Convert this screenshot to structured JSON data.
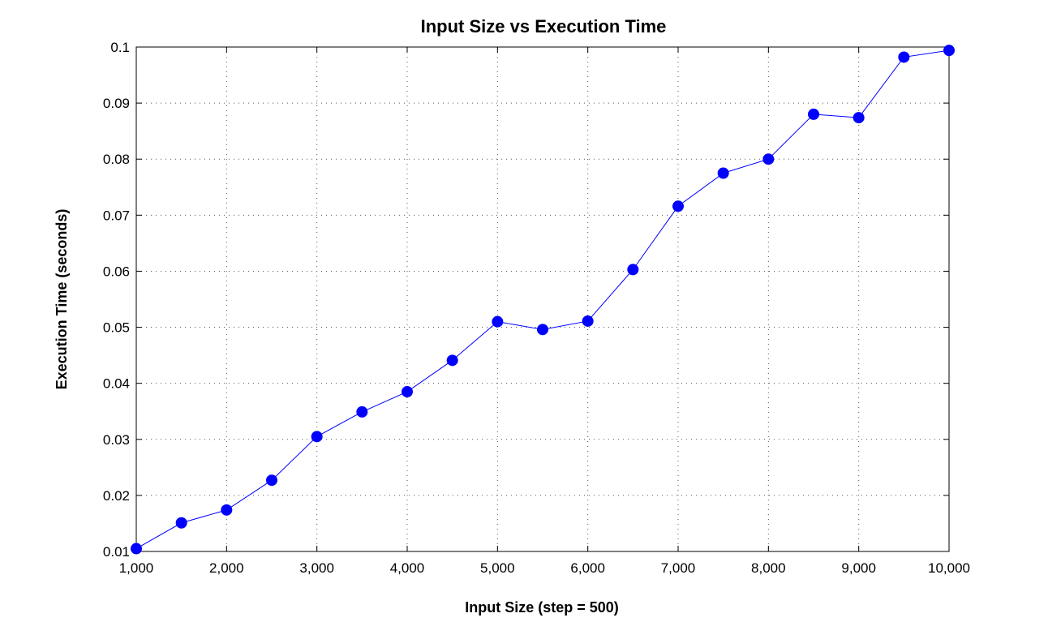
{
  "chart_data": {
    "type": "line",
    "title": "Input Size vs Execution Time",
    "xlabel": "Input Size (step = 500)",
    "ylabel": "Execution Time (seconds)",
    "xlim": [
      1000,
      10000
    ],
    "ylim": [
      0.01,
      0.1
    ],
    "xticks": [
      1000,
      2000,
      3000,
      4000,
      5000,
      6000,
      7000,
      8000,
      9000,
      10000
    ],
    "xtick_labels": [
      "1,000",
      "2,000",
      "3,000",
      "4,000",
      "5,000",
      "6,000",
      "7,000",
      "8,000",
      "9,000",
      "10,000"
    ],
    "yticks": [
      0.01,
      0.02,
      0.03,
      0.04,
      0.05,
      0.06,
      0.07,
      0.08,
      0.09,
      0.1
    ],
    "ytick_labels": [
      "0.01",
      "0.02",
      "0.03",
      "0.04",
      "0.05",
      "0.06",
      "0.07",
      "0.08",
      "0.09",
      "0.1"
    ],
    "grid": true,
    "series": [
      {
        "color": "#0000ff",
        "marker": "circle",
        "x": [
          1000,
          1500,
          2000,
          2500,
          3000,
          3500,
          4000,
          4500,
          5000,
          5500,
          6000,
          6500,
          7000,
          7500,
          8000,
          8500,
          9000,
          9500,
          10000
        ],
        "values": [
          0.0105,
          0.0151,
          0.0174,
          0.0227,
          0.0305,
          0.0349,
          0.0385,
          0.0441,
          0.051,
          0.0496,
          0.0511,
          0.0603,
          0.0716,
          0.0775,
          0.08,
          0.088,
          0.0874,
          0.0982,
          0.0994
        ]
      }
    ]
  }
}
